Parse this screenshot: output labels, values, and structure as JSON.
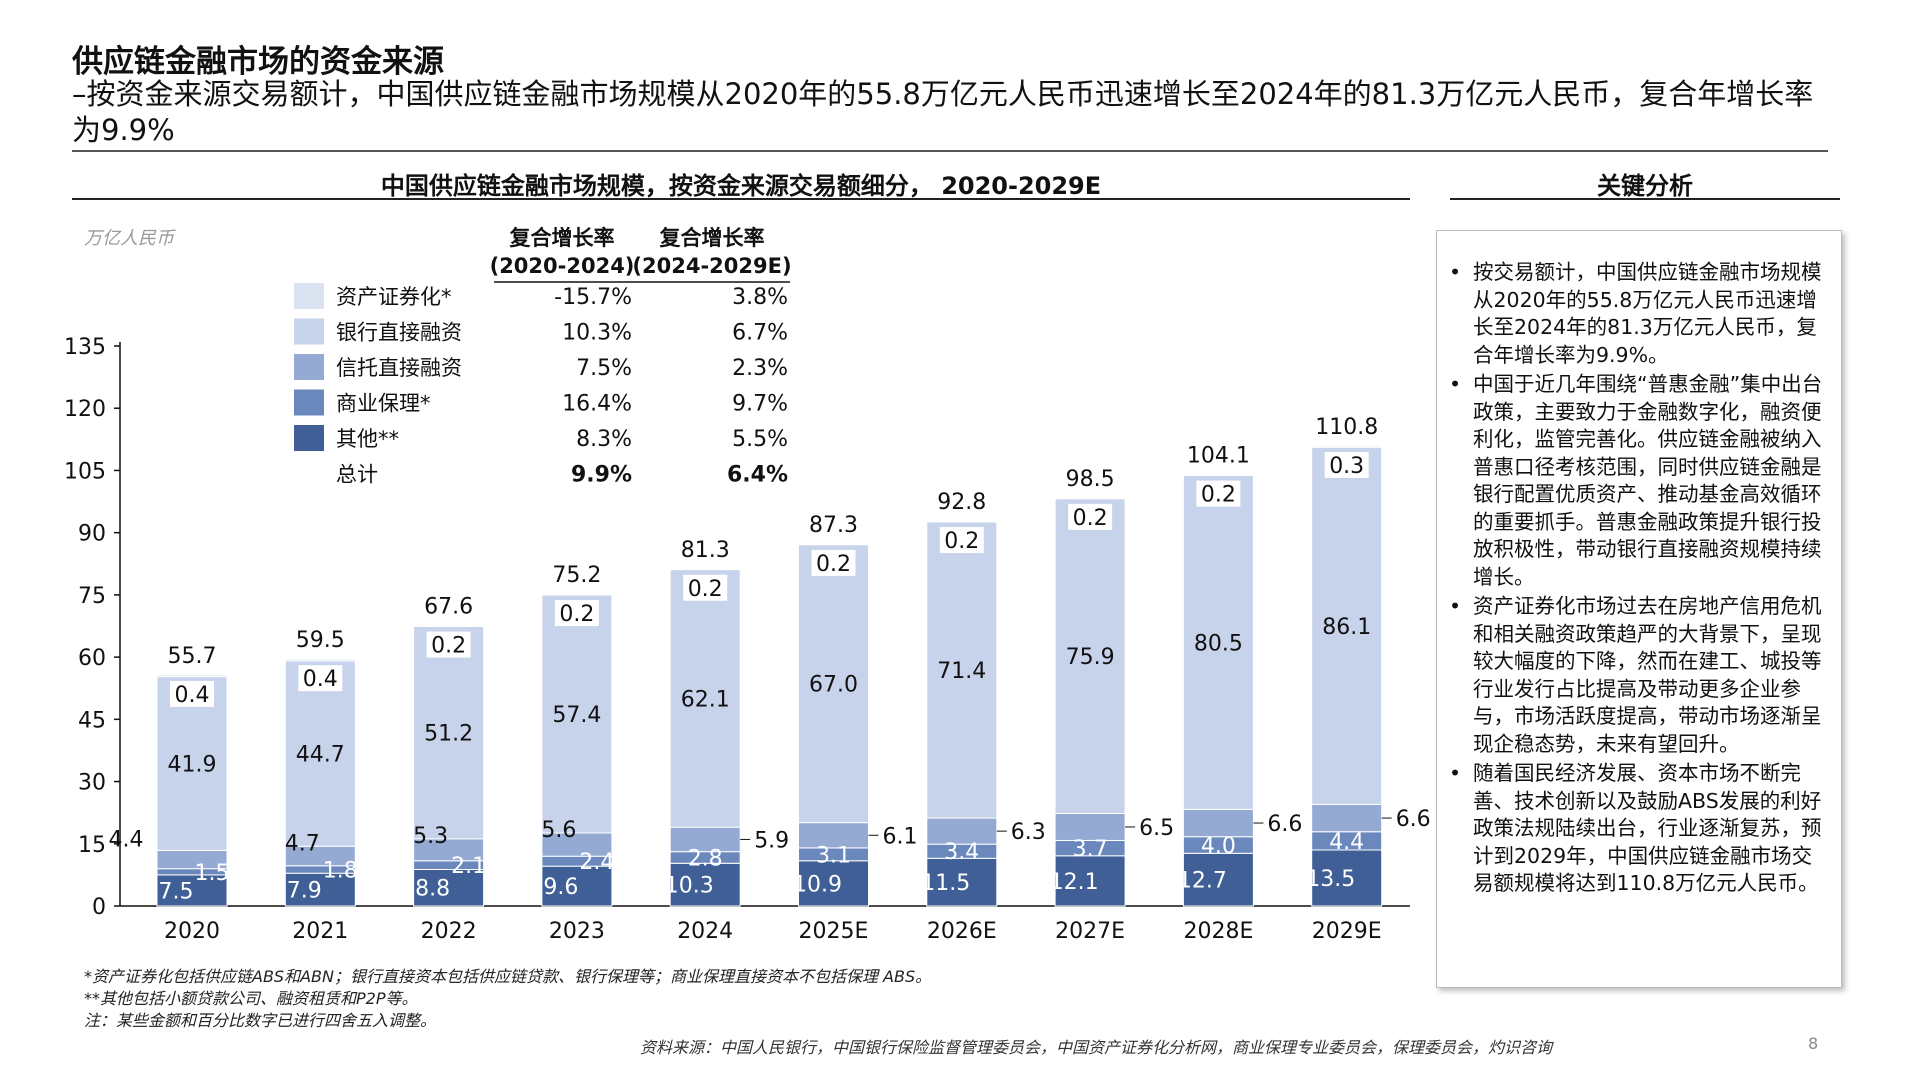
{
  "header": {
    "title": "供应链金融市场的资金来源",
    "subtitle": "–按资金来源交易额计，中国供应链金融市场规模从2020年的55.8万亿元人民币迅速增长至2024年的81.3万亿元人民币，复合年增长率为9.9%"
  },
  "chart_header": "中国供应链金融市场规模，按资金来源交易额细分， 2020-2029E",
  "analysis": {
    "title": "关键分析",
    "bullets": [
      "按交易额计，中国供应链金融市场规模从2020年的55.8万亿元人民币迅速增长至2024年的81.3万亿元人民币，复合年增长率为9.9%。",
      "中国于近几年围绕“普惠金融”集中出台政策，主要致力于金融数字化，融资便利化，监管完善化。供应链金融被纳入普惠口径考核范围，同时供应链金融是银行配置优质资产、推动基金高效循环的重要抓手。普惠金融政策提升银行投放积极性，带动银行直接融资规模持续增长。",
      "资产证券化市场过去在房地产信用危机和相关融资政策趋严的大背景下，呈现较大幅度的下降，然而在建工、城投等行业发行占比提高及带动更多企业参与，市场活跃度提高，带动市场逐渐呈现企稳态势，未来有望回升。",
      "随着国民经济发展、资本市场不断完善、技术创新以及鼓励ABS发展的利好政策法规陆续出台，行业逐渐复苏，预计到2029年，中国供应链金融市场交易额规模将达到110.8万亿元人民币。"
    ]
  },
  "chart_data": {
    "type": "bar",
    "stacked": true,
    "unit": "万亿人民币",
    "categories": [
      "2020",
      "2021",
      "2022",
      "2023",
      "2024",
      "2025E",
      "2026E",
      "2027E",
      "2028E",
      "2029E"
    ],
    "yticks": [
      "0",
      "15",
      "30",
      "45",
      "60",
      "75",
      "90",
      "105",
      "120",
      "135"
    ],
    "ylim": [
      0,
      135
    ],
    "series": [
      {
        "name": "其他**",
        "color": "#3f5f96",
        "values": [
          7.5,
          7.9,
          8.8,
          9.6,
          10.3,
          10.9,
          11.5,
          12.1,
          12.7,
          13.5
        ]
      },
      {
        "name": "商业保理*",
        "color": "#6b88bd",
        "values": [
          1.5,
          1.8,
          2.1,
          2.4,
          2.8,
          3.1,
          3.4,
          3.7,
          4.0,
          4.4
        ]
      },
      {
        "name": "信托直接融资",
        "color": "#95aad3",
        "values": [
          4.4,
          4.7,
          5.3,
          5.6,
          5.9,
          6.1,
          6.3,
          6.5,
          6.6,
          6.6
        ]
      },
      {
        "name": "银行直接融资",
        "color": "#c7d3ea",
        "values": [
          41.9,
          44.7,
          51.2,
          57.4,
          62.1,
          67.0,
          71.4,
          75.9,
          80.5,
          86.1
        ]
      },
      {
        "name": "资产证券化*",
        "color": "#dbe2f0",
        "values": [
          0.4,
          0.4,
          0.2,
          0.2,
          0.2,
          0.2,
          0.2,
          0.2,
          0.2,
          0.3
        ]
      }
    ],
    "totals": [
      "55.7",
      "59.5",
      "67.6",
      "75.2",
      "81.3",
      "87.3",
      "92.8",
      "98.5",
      "104.1",
      "110.8"
    ],
    "cagr": {
      "headers": [
        [
          "复合增长率",
          "(2020-2024)"
        ],
        [
          "复合增长率",
          "(2024-2029E)"
        ]
      ],
      "rows": [
        {
          "label": "资产证券化*",
          "a": "-15.7%",
          "b": "3.8%"
        },
        {
          "label": "银行直接融资",
          "a": "10.3%",
          "b": "6.7%"
        },
        {
          "label": "信托直接融资",
          "a": "7.5%",
          "b": "2.3%"
        },
        {
          "label": "商业保理*",
          "a": "16.4%",
          "b": "9.7%"
        },
        {
          "label": "其他**",
          "a": "8.3%",
          "b": "5.5%"
        },
        {
          "label": "总计",
          "a": "9.9%",
          "b": "6.4%"
        }
      ]
    }
  },
  "footnotes": [
    "*资产证券化包括供应链ABS和ABN；银行直接资本包括供应链贷款、银行保理等；商业保理直接资本不包括保理 ABS。",
    "**其他包括小额贷款公司、融资租赁和P2P等。",
    "注：某些金额和百分比数字已进行四舍五入调整。"
  ],
  "source": "资料来源：中国人民银行，中国银行保险监督管理委员会，中国资产证券化分析网，商业保理专业委员会，保理委员会，灼识咨询",
  "page_number": "8"
}
